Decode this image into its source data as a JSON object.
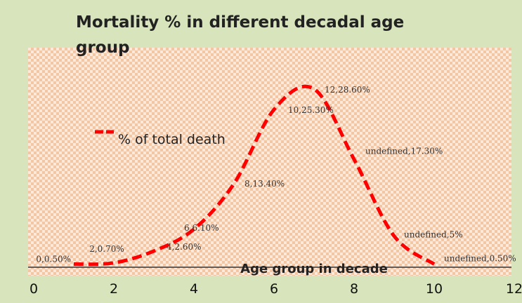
{
  "chart_data": {
    "type": "line",
    "title": "Mortality % in different decadal age group",
    "x_label": "Age group in decade",
    "x": [
      1,
      2,
      3,
      4,
      5,
      6,
      7,
      8,
      9,
      10
    ],
    "series": [
      {
        "name": "% of total death",
        "color": "#ff0000",
        "values": [
          0.5,
          0.7,
          2.6,
          6.1,
          13.4,
          25.3,
          28.6,
          17.3,
          5,
          0.5
        ],
        "value_labels": [
          "0,0.50%",
          "2,0.70%",
          "4,2.60%",
          "6,6.10%",
          "8,13.40%",
          "10,25.30%",
          "12,28.60%",
          "undefined,17.30%",
          "undefined,5%",
          "undefined,0.50%"
        ]
      }
    ],
    "xlim": [
      0,
      12
    ],
    "xticks": [
      0,
      2,
      4,
      6,
      8,
      10,
      12
    ],
    "ylim": [
      0,
      35
    ],
    "smooth": true,
    "dashed": true
  }
}
